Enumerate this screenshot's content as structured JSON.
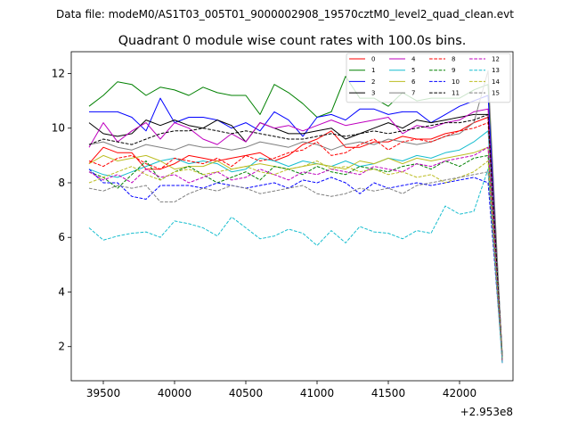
{
  "figure": {
    "suptitle": "Data file: modeM0/AS1T03_005T01_9000002908_19570cztM0_level2_quad_clean.evt"
  },
  "chart_data": {
    "type": "line",
    "title": "Quadrant 0 module wise count rates with 100.0s bins.",
    "xlabel": "",
    "ylabel": "",
    "x_offset_label": "+2.953e8",
    "xlim": [
      39275,
      42375
    ],
    "ylim": [
      0.75,
      12.8
    ],
    "xticks": [
      39500,
      40000,
      40500,
      41000,
      41500,
      42000
    ],
    "xtick_labels": [
      "39500",
      "40000",
      "40500",
      "41000",
      "41500",
      "42000"
    ],
    "yticks": [
      2,
      4,
      6,
      8,
      10,
      12
    ],
    "ytick_labels": [
      "2",
      "4",
      "6",
      "8",
      "10",
      "12"
    ],
    "grid": false,
    "legend_position": "top-right",
    "legend_columns": 4,
    "x": [
      39400,
      39500,
      39600,
      39700,
      39800,
      39900,
      40000,
      40100,
      40200,
      40300,
      40400,
      40500,
      40600,
      40700,
      40800,
      40900,
      41000,
      41100,
      41200,
      41300,
      41400,
      41500,
      41600,
      41700,
      41800,
      41900,
      42000,
      42100,
      42200,
      42300
    ],
    "series": [
      {
        "name": "0",
        "color": "#ff0000",
        "dash": "solid",
        "values": [
          8.7,
          9.3,
          9.1,
          9.1,
          8.5,
          8.5,
          8.7,
          9.0,
          8.9,
          8.8,
          8.9,
          9.0,
          9.1,
          8.8,
          9.0,
          9.4,
          9.6,
          9.9,
          9.3,
          9.3,
          9.5,
          9.5,
          9.7,
          9.6,
          9.6,
          9.8,
          9.9,
          10.2,
          10.4,
          1.4
        ]
      },
      {
        "name": "1",
        "color": "#008000",
        "dash": "solid",
        "values": [
          10.8,
          11.2,
          11.7,
          11.6,
          11.2,
          11.5,
          11.4,
          11.2,
          11.5,
          11.3,
          11.2,
          11.2,
          10.5,
          11.6,
          11.3,
          10.9,
          10.4,
          10.6,
          11.9,
          11.1,
          11.1,
          10.8,
          11.3,
          11.0,
          11.1,
          11.1,
          11.1,
          11.4,
          11.6,
          1.5
        ]
      },
      {
        "name": "2",
        "color": "#0000ff",
        "dash": "solid",
        "values": [
          10.6,
          10.6,
          10.6,
          10.4,
          9.9,
          11.1,
          10.2,
          10.4,
          10.4,
          10.3,
          10.0,
          10.2,
          9.9,
          10.6,
          10.3,
          9.7,
          10.4,
          10.5,
          10.3,
          10.7,
          10.7,
          10.5,
          10.6,
          10.6,
          10.2,
          10.5,
          10.8,
          11.0,
          11.2,
          1.6
        ]
      },
      {
        "name": "3",
        "color": "#000000",
        "dash": "solid",
        "values": [
          10.2,
          9.8,
          9.7,
          9.8,
          10.3,
          10.1,
          10.3,
          10.1,
          10.0,
          10.3,
          10.1,
          9.5,
          10.2,
          10.0,
          9.8,
          9.8,
          9.9,
          10.0,
          9.6,
          9.8,
          10.0,
          10.2,
          10.0,
          10.3,
          10.2,
          10.3,
          10.4,
          10.5,
          10.5,
          1.7
        ]
      },
      {
        "name": "4",
        "color": "#bf00bf",
        "dash": "solid",
        "values": [
          9.3,
          10.2,
          9.5,
          9.9,
          10.2,
          9.6,
          10.2,
          10.0,
          9.6,
          9.4,
          9.8,
          9.5,
          10.2,
          10.0,
          10.1,
          9.9,
          10.1,
          10.3,
          10.1,
          10.2,
          10.3,
          10.4,
          9.8,
          10.1,
          10.0,
          10.2,
          10.3,
          10.6,
          10.7,
          1.4
        ]
      },
      {
        "name": "5",
        "color": "#17becf",
        "dash": "solid",
        "values": [
          8.5,
          8.3,
          8.2,
          8.4,
          8.6,
          8.8,
          8.9,
          8.7,
          8.8,
          8.7,
          8.4,
          8.5,
          8.9,
          8.8,
          8.6,
          8.8,
          8.7,
          8.6,
          8.8,
          8.6,
          8.7,
          8.9,
          8.8,
          9.0,
          8.9,
          9.1,
          9.2,
          9.5,
          9.9,
          1.6
        ]
      },
      {
        "name": "6",
        "color": "#bcbd22",
        "dash": "solid",
        "values": [
          8.7,
          9.0,
          8.8,
          8.9,
          9.0,
          8.8,
          8.5,
          8.6,
          8.6,
          8.8,
          8.5,
          8.6,
          8.7,
          8.6,
          8.5,
          8.6,
          8.7,
          8.6,
          8.5,
          8.8,
          8.7,
          8.9,
          8.7,
          8.9,
          8.8,
          8.9,
          9.0,
          9.1,
          9.3,
          1.5
        ]
      },
      {
        "name": "7",
        "color": "#7f7f7f",
        "dash": "solid",
        "values": [
          9.4,
          9.5,
          9.3,
          9.2,
          9.4,
          9.3,
          9.2,
          9.4,
          9.3,
          9.3,
          9.2,
          9.3,
          9.5,
          9.4,
          9.3,
          9.5,
          9.4,
          9.2,
          9.4,
          9.5,
          9.4,
          9.6,
          9.5,
          9.4,
          9.5,
          9.7,
          9.8,
          10.2,
          12.1,
          1.5
        ]
      },
      {
        "name": "8",
        "color": "#ff0000",
        "dash": "dashed",
        "values": [
          8.8,
          8.6,
          8.9,
          9.0,
          8.7,
          8.5,
          8.9,
          8.8,
          8.7,
          8.9,
          8.6,
          9.0,
          8.8,
          8.9,
          9.1,
          9.2,
          9.5,
          9.0,
          9.1,
          9.4,
          9.6,
          9.2,
          9.5,
          9.6,
          9.5,
          9.7,
          9.9,
          10.0,
          10.2,
          1.5
        ]
      },
      {
        "name": "9",
        "color": "#008000",
        "dash": "dashed",
        "values": [
          8.4,
          8.2,
          7.8,
          8.3,
          8.8,
          8.1,
          8.4,
          8.6,
          8.3,
          8.0,
          8.2,
          8.4,
          8.1,
          8.6,
          8.5,
          8.3,
          8.6,
          8.4,
          8.3,
          8.6,
          8.5,
          8.4,
          8.6,
          8.7,
          8.5,
          8.8,
          8.6,
          8.9,
          9.0,
          1.6
        ]
      },
      {
        "name": "10",
        "color": "#0000ff",
        "dash": "dashed",
        "values": [
          8.5,
          8.0,
          8.0,
          7.5,
          7.4,
          7.9,
          7.9,
          7.9,
          7.8,
          8.0,
          7.9,
          7.8,
          7.9,
          8.0,
          7.8,
          8.1,
          8.0,
          8.2,
          8.0,
          7.6,
          8.0,
          7.8,
          7.9,
          8.0,
          7.9,
          8.0,
          8.1,
          8.2,
          8.0,
          1.6
        ]
      },
      {
        "name": "11",
        "color": "#000000",
        "dash": "dashed",
        "values": [
          9.4,
          9.6,
          9.5,
          9.4,
          9.6,
          9.8,
          9.9,
          9.9,
          10.0,
          9.9,
          9.8,
          9.9,
          9.8,
          9.7,
          9.6,
          9.6,
          9.7,
          9.8,
          9.7,
          9.8,
          9.9,
          9.8,
          9.9,
          10.0,
          10.1,
          10.2,
          10.2,
          10.3,
          10.5,
          1.5
        ]
      },
      {
        "name": "12",
        "color": "#bf00bf",
        "dash": "dashed",
        "values": [
          8.4,
          8.1,
          8.3,
          8.0,
          8.5,
          8.2,
          8.3,
          8.0,
          8.2,
          8.4,
          8.1,
          8.2,
          8.5,
          8.3,
          8.1,
          8.4,
          8.3,
          8.5,
          8.4,
          8.3,
          8.6,
          8.5,
          8.4,
          8.7,
          8.6,
          8.8,
          8.9,
          9.0,
          9.3,
          1.5
        ]
      },
      {
        "name": "13",
        "color": "#17becf",
        "dash": "dashed",
        "values": [
          6.35,
          5.9,
          6.05,
          6.15,
          6.2,
          6.0,
          6.6,
          6.5,
          6.35,
          6.05,
          6.75,
          6.35,
          5.95,
          6.05,
          6.3,
          6.15,
          5.7,
          6.25,
          5.8,
          6.4,
          6.2,
          6.15,
          5.95,
          6.25,
          6.15,
          7.15,
          6.85,
          6.95,
          8.5,
          1.4
        ]
      },
      {
        "name": "14",
        "color": "#bcbd22",
        "dash": "dashed",
        "values": [
          8.0,
          8.2,
          8.4,
          8.6,
          8.3,
          8.1,
          8.4,
          8.5,
          8.3,
          8.4,
          8.5,
          8.6,
          8.4,
          8.3,
          8.5,
          8.6,
          8.8,
          8.5,
          8.6,
          8.4,
          8.5,
          8.3,
          8.4,
          8.2,
          8.3,
          8.0,
          8.2,
          8.4,
          8.8,
          1.6
        ]
      },
      {
        "name": "15",
        "color": "#7f7f7f",
        "dash": "dashed",
        "values": [
          7.8,
          7.7,
          7.9,
          7.8,
          7.9,
          7.3,
          7.3,
          7.6,
          7.8,
          7.7,
          7.9,
          7.8,
          7.6,
          7.7,
          7.8,
          7.9,
          7.6,
          7.5,
          7.6,
          7.8,
          7.7,
          7.8,
          7.6,
          7.9,
          8.0,
          8.1,
          8.2,
          8.3,
          8.4,
          1.5
        ]
      }
    ]
  }
}
